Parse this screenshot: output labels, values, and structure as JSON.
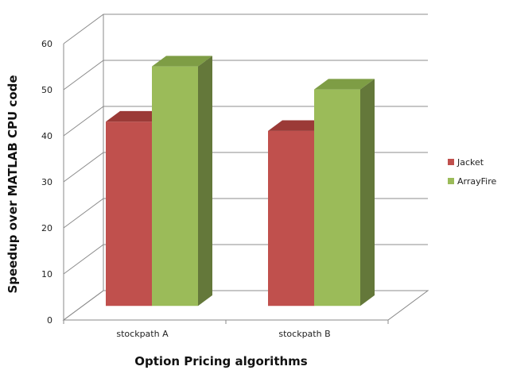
{
  "chart_data": {
    "type": "bar",
    "style": "3d-clustered-column",
    "title": "",
    "xlabel": "Option Pricing algorithms",
    "ylabel": "Speedup over MATLAB CPU code",
    "ylim": [
      0,
      60
    ],
    "yticks": [
      "0",
      "10",
      "20",
      "30",
      "40",
      "50",
      "60"
    ],
    "categories": [
      "stockpath A",
      "stockpath B"
    ],
    "series": [
      {
        "name": "Jacket",
        "values": [
          40,
          38
        ],
        "color": "#C0504D",
        "top_color": "#9B3A37",
        "side_color": "#8E3431"
      },
      {
        "name": "ArrayFire",
        "values": [
          52,
          47
        ],
        "color": "#9BBB59",
        "top_color": "#7E9D45",
        "side_color": "#64783A"
      }
    ],
    "grid": true,
    "legend_position": "right"
  }
}
